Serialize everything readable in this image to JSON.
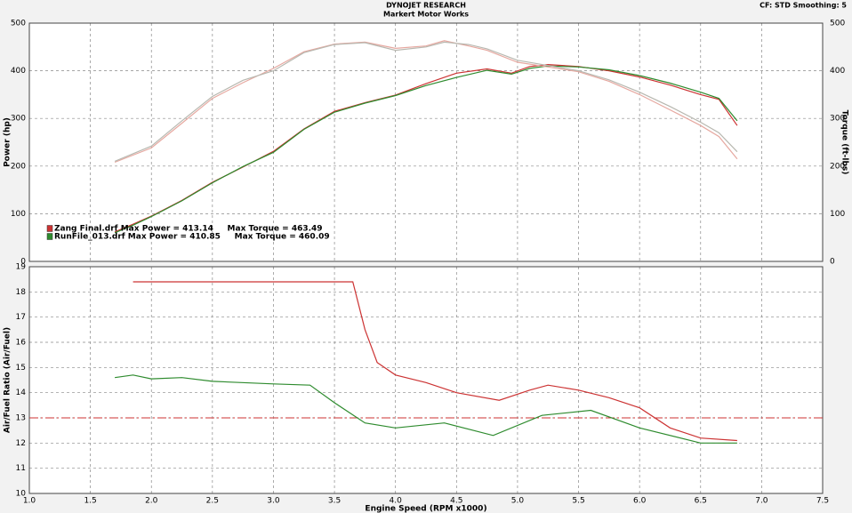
{
  "chart_data": [
    {
      "type": "line",
      "title": "DYNOJET RESEARCH",
      "subtitle": "Markert Motor Works",
      "annotation": "CF: STD  Smoothing: 5",
      "ylabel": "Power (hp)",
      "y2label": "Torque (ft-lbs)",
      "xlim": [
        1,
        7.5
      ],
      "xticks": [
        1,
        1.5,
        2,
        2.5,
        3,
        3.5,
        4,
        4.5,
        5,
        5.5,
        6,
        6.5,
        7,
        7.5
      ],
      "ylim": [
        0,
        500
      ],
      "yticks": [
        0,
        100,
        200,
        300,
        400,
        500
      ],
      "y2lim": [
        0,
        500
      ],
      "y2ticks": [
        0,
        100,
        200,
        300,
        400,
        500
      ],
      "grid": true,
      "legend": [
        {
          "text": "Zang Final.drf Max Power = 413.14     Max Torque = 463.49",
          "color": "#cc3333"
        },
        {
          "text": "RunFile_013.drf Max Power = 410.85     Max Torque = 460.09",
          "color": "#2e8b2e"
        }
      ],
      "series": [
        {
          "color": "#cc3333",
          "x": [
            1.7,
            1.85,
            2.0,
            2.25,
            2.5,
            2.75,
            3.0,
            3.25,
            3.5,
            3.75,
            4.0,
            4.25,
            4.5,
            4.75,
            4.95,
            5.1,
            5.25,
            5.5,
            5.75,
            6.0,
            6.25,
            6.5,
            6.65,
            6.8
          ],
          "values": [
            62,
            78,
            95,
            128,
            166,
            198,
            231,
            278,
            315,
            333,
            349,
            373,
            395,
            404,
            395,
            409,
            413,
            409,
            400,
            387,
            370,
            350,
            340,
            285
          ]
        },
        {
          "color": "#2e8b2e",
          "x": [
            1.7,
            1.85,
            2.0,
            2.25,
            2.5,
            2.75,
            3.0,
            3.25,
            3.5,
            3.75,
            4.0,
            4.25,
            4.5,
            4.75,
            4.95,
            5.1,
            5.25,
            5.5,
            5.75,
            6.0,
            6.25,
            6.5,
            6.65,
            6.8
          ],
          "values": [
            60,
            76,
            94,
            127,
            165,
            199,
            229,
            277,
            313,
            332,
            348,
            369,
            386,
            401,
            393,
            405,
            410,
            408,
            402,
            390,
            374,
            355,
            342,
            295
          ]
        },
        {
          "color": "#e6a8a0",
          "axis": "y2",
          "x": [
            1.7,
            2.0,
            2.25,
            2.5,
            2.75,
            3.0,
            3.25,
            3.5,
            3.75,
            4.0,
            4.25,
            4.4,
            4.6,
            4.75,
            5.0,
            5.25,
            5.5,
            5.75,
            6.0,
            6.25,
            6.5,
            6.65,
            6.8
          ],
          "values": [
            208,
            238,
            290,
            342,
            375,
            405,
            440,
            456,
            460,
            447,
            452,
            463,
            452,
            443,
            418,
            408,
            398,
            378,
            350,
            318,
            285,
            262,
            215
          ]
        },
        {
          "color": "#b8b8b0",
          "axis": "y2",
          "x": [
            1.7,
            2.0,
            2.25,
            2.5,
            2.75,
            3.0,
            3.25,
            3.5,
            3.75,
            4.0,
            4.25,
            4.4,
            4.6,
            4.75,
            5.0,
            5.25,
            5.5,
            5.75,
            6.0,
            6.25,
            6.5,
            6.65,
            6.8
          ],
          "values": [
            210,
            242,
            295,
            346,
            380,
            400,
            438,
            455,
            459,
            443,
            450,
            460,
            455,
            446,
            422,
            411,
            400,
            381,
            355,
            325,
            292,
            270,
            230
          ]
        }
      ]
    },
    {
      "type": "line",
      "xlabel": "Engine Speed (RPM x1000)",
      "ylabel": "Air/Fuel Ratio (Air/Fuel)",
      "xlim": [
        1,
        7.5
      ],
      "xticks": [
        {
          "value": 1,
          "label": "1.0"
        },
        1.5,
        {
          "value": 2,
          "label": "2.0"
        },
        2.5,
        {
          "value": 3,
          "label": "3.0"
        },
        3.5,
        {
          "value": 4,
          "label": "4.0"
        },
        4.5,
        {
          "value": 5,
          "label": "5.0"
        },
        5.5,
        {
          "value": 6,
          "label": "6.0"
        },
        6.5,
        {
          "value": 7,
          "label": "7.0"
        },
        7.5
      ],
      "ylim": [
        10,
        19
      ],
      "yticks": [
        10,
        11,
        12,
        13,
        14,
        15,
        16,
        17,
        18,
        19
      ],
      "grid": true,
      "reference_line": {
        "value": 13,
        "color": "#cc3333"
      },
      "series": [
        {
          "color": "#cc3333",
          "x": [
            1.85,
            2.5,
            3.0,
            3.65,
            3.75,
            3.85,
            4.0,
            4.25,
            4.5,
            4.85,
            5.1,
            5.25,
            5.5,
            5.75,
            6.0,
            6.25,
            6.5,
            6.8
          ],
          "values": [
            18.4,
            18.4,
            18.4,
            18.4,
            16.5,
            15.2,
            14.7,
            14.4,
            14.0,
            13.7,
            14.1,
            14.3,
            14.1,
            13.8,
            13.4,
            12.6,
            12.2,
            12.1
          ]
        },
        {
          "color": "#2e8b2e",
          "x": [
            1.7,
            1.85,
            2.0,
            2.25,
            2.5,
            3.0,
            3.3,
            3.5,
            3.75,
            4.0,
            4.4,
            4.8,
            5.2,
            5.6,
            6.0,
            6.5,
            6.8
          ],
          "values": [
            14.6,
            14.7,
            14.55,
            14.6,
            14.45,
            14.35,
            14.3,
            13.6,
            12.8,
            12.6,
            12.8,
            12.3,
            13.1,
            13.3,
            12.6,
            12.0,
            12.0
          ]
        }
      ]
    }
  ]
}
